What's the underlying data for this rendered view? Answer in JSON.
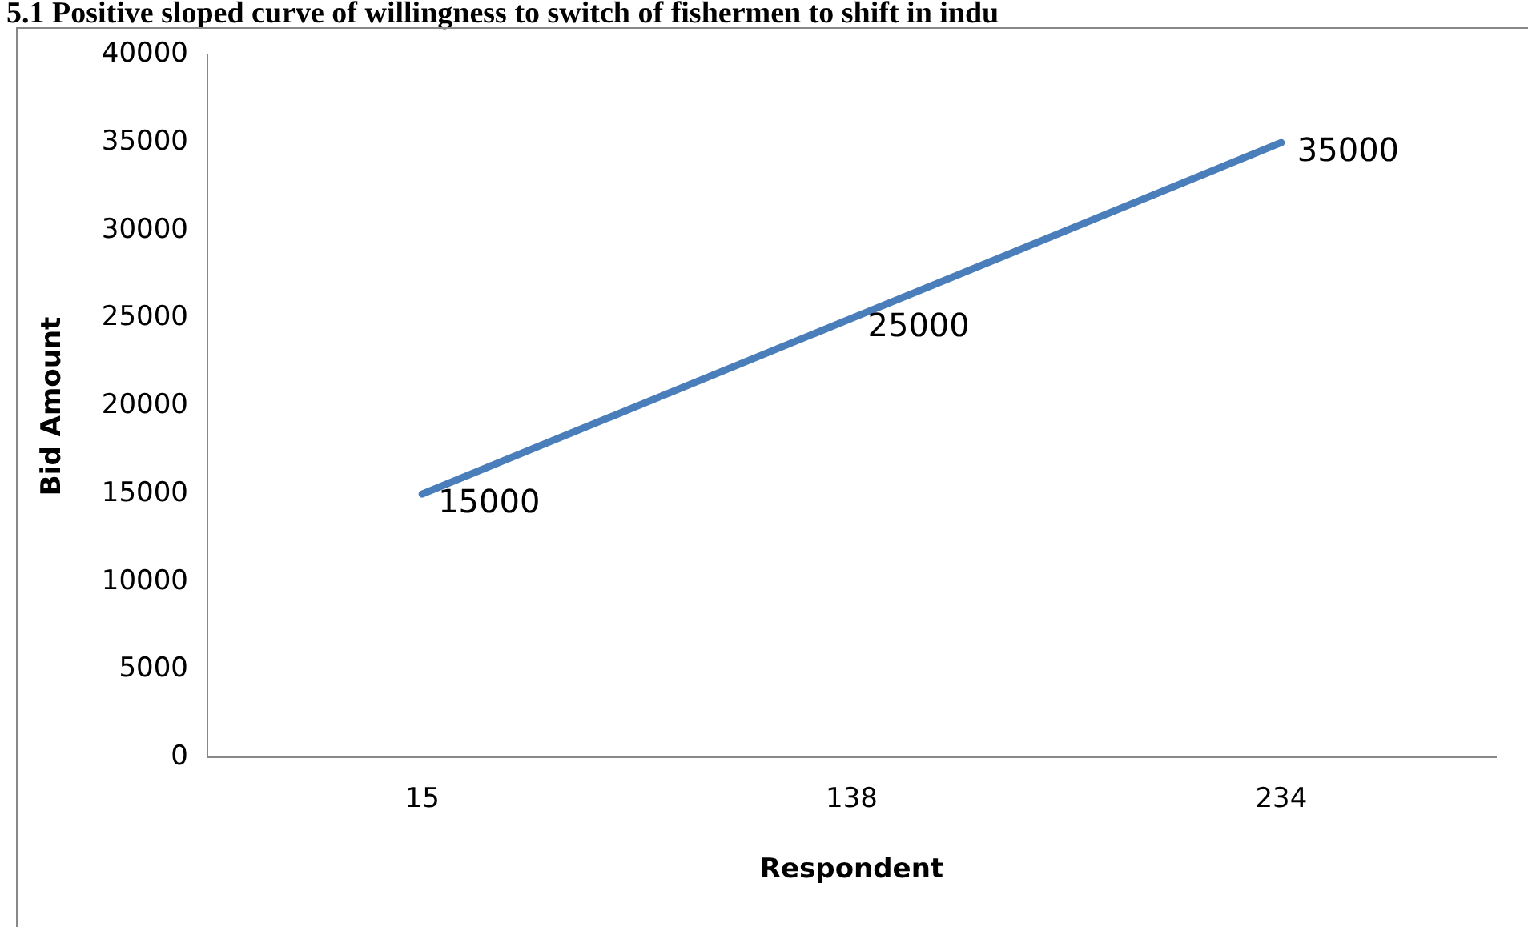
{
  "chart_data": {
    "type": "line",
    "title": "5.1 Positive sloped curve of willingness to switch of fishermen to shift in indu",
    "xlabel": "Respondent",
    "ylabel": "Bid Amount",
    "categories": [
      "15",
      "138",
      "234"
    ],
    "series": [
      {
        "color": "#4a7ebb",
        "values": [
          15000,
          25000,
          35000
        ]
      }
    ],
    "ylim": [
      0,
      40000
    ],
    "yticks": [
      0,
      5000,
      10000,
      15000,
      20000,
      25000,
      30000,
      35000,
      40000
    ],
    "grid": false,
    "legend": false,
    "marker": "none",
    "line_style": "solid",
    "data_labels": true
  }
}
